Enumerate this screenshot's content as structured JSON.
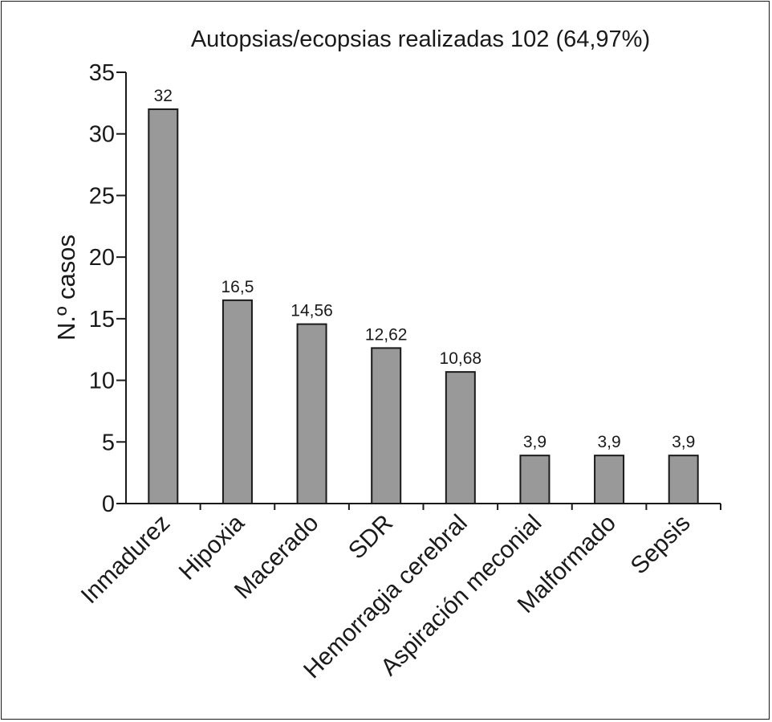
{
  "chart_data": {
    "type": "bar",
    "title": "Autopsias/ecopsias realizadas 102 (64,97%)",
    "xlabel": "",
    "ylabel": "N.º casos",
    "ylim": [
      0,
      35
    ],
    "yticks": [
      "0",
      "5",
      "10",
      "15",
      "20",
      "25",
      "30",
      "35"
    ],
    "grid": false,
    "categories": [
      "Inmadurez",
      "Hipoxia",
      "Macerado",
      "SDR",
      "Hemorragia cerebral",
      "Aspiración meconial",
      "Malformado",
      "Sepsis"
    ],
    "values": [
      32,
      16.5,
      14.56,
      12.62,
      10.68,
      3.9,
      3.9,
      3.9
    ],
    "value_labels": [
      "32",
      "16,5",
      "14,56",
      "12,62",
      "10,68",
      "3,9",
      "3,9",
      "3,9"
    ],
    "bar_color": "#999999",
    "bar_edge_color": "#1a1a1a"
  }
}
